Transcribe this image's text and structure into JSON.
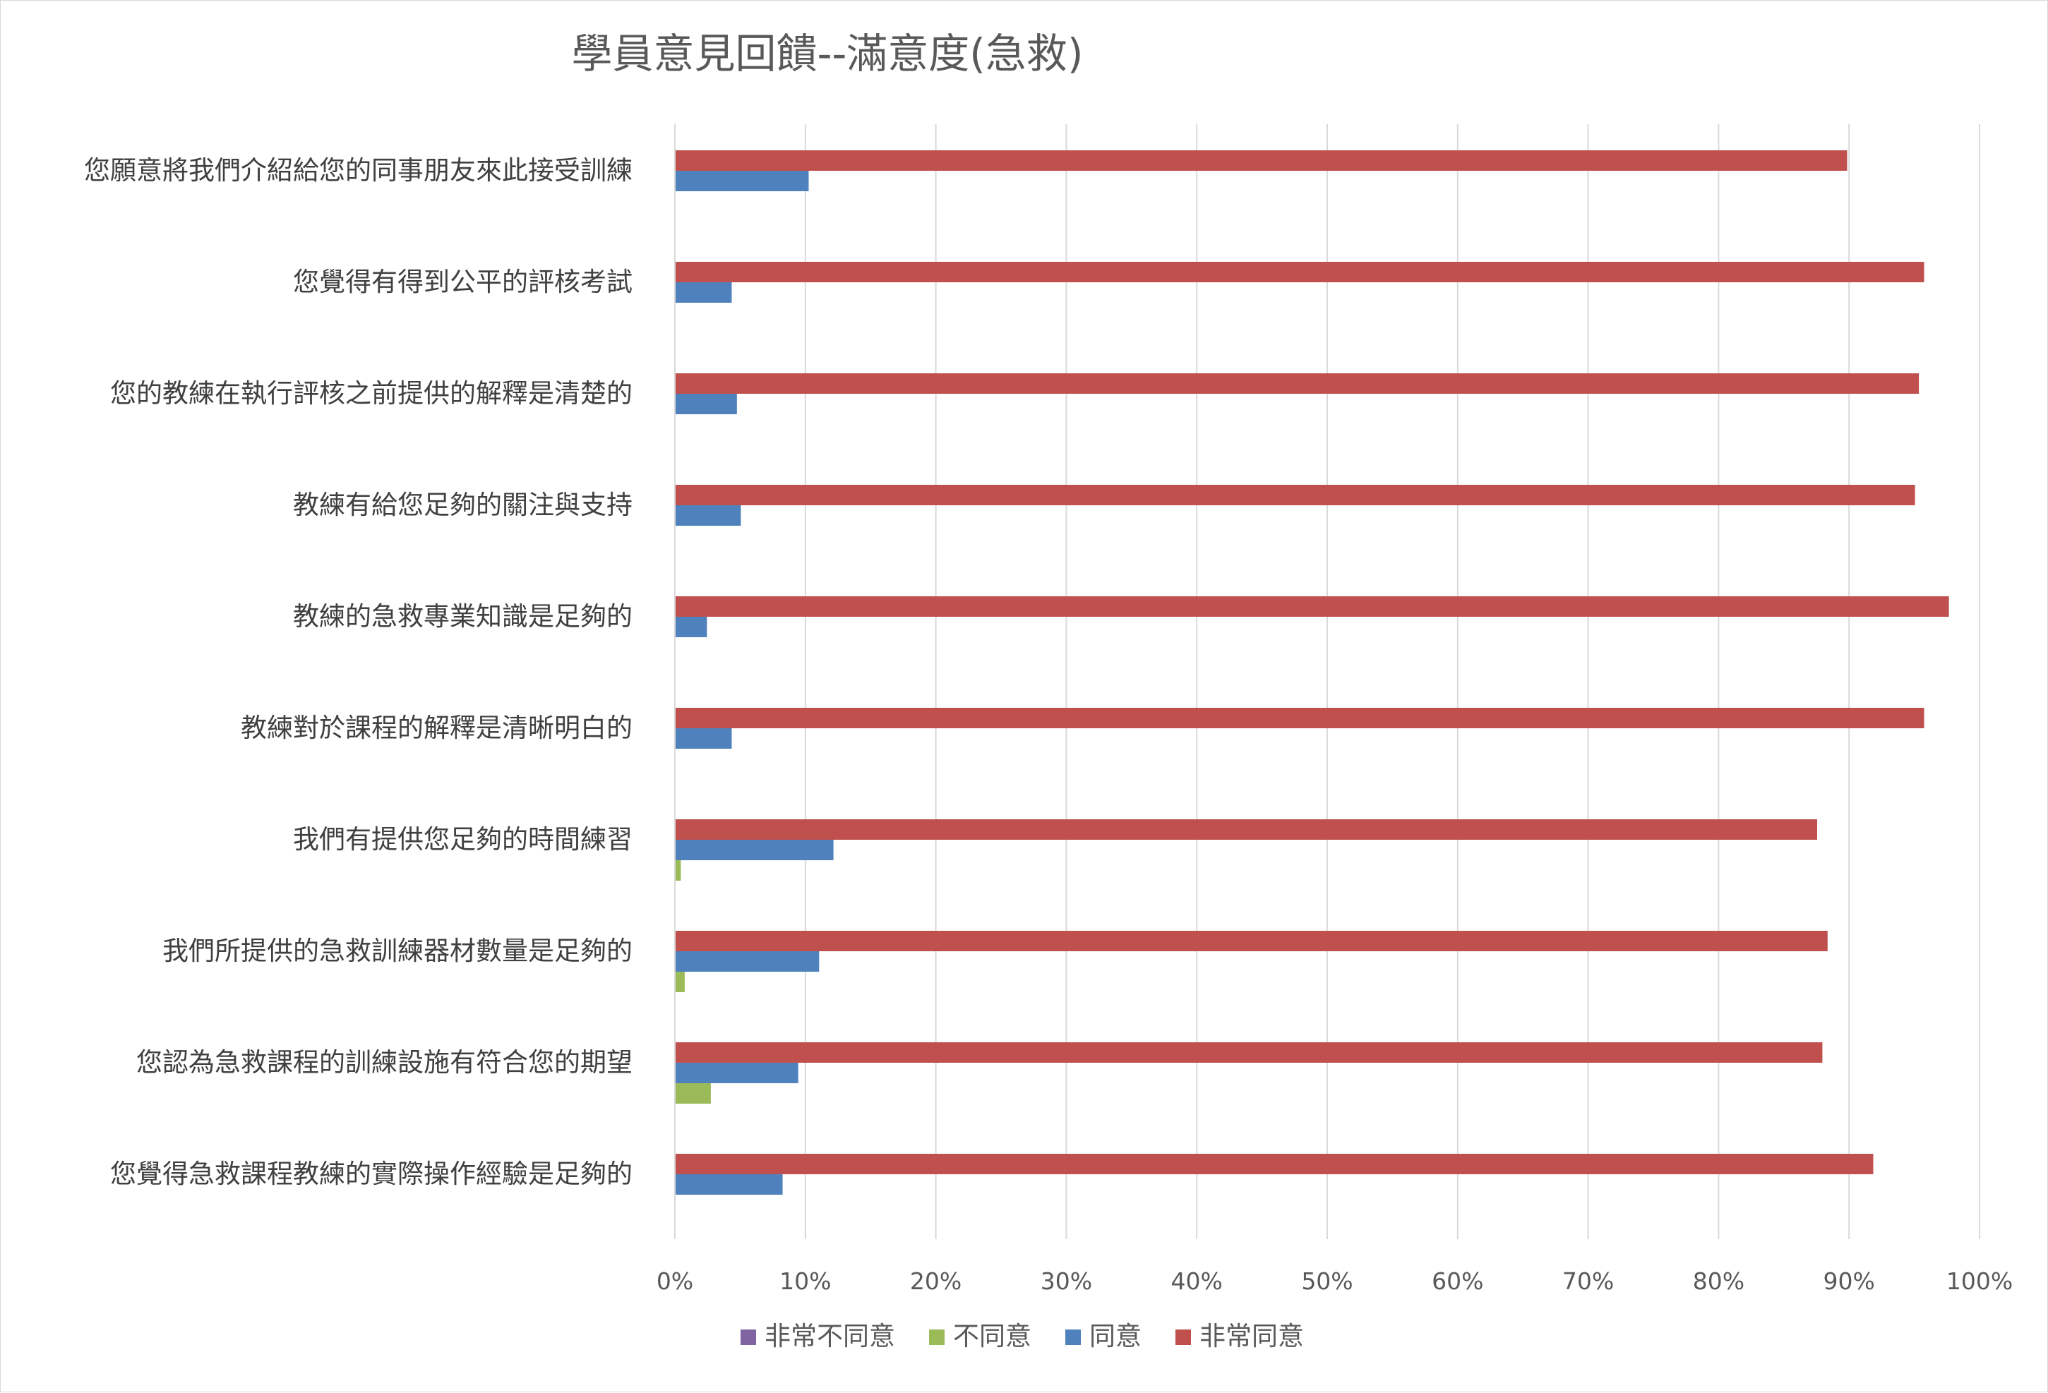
{
  "chart_data": {
    "type": "bar",
    "orientation": "horizontal",
    "title": "學員意見回饋--滿意度(急救)",
    "xlabel": "",
    "ylabel": "",
    "xlim": [
      0,
      1
    ],
    "x_tick_labels": [
      "0%",
      "10%",
      "20%",
      "30%",
      "40%",
      "50%",
      "60%",
      "70%",
      "80%",
      "90%",
      "100%"
    ],
    "grid": "vertical",
    "legend_position": "bottom",
    "categories": [
      "您覺得急救課程教練的實際操作經驗是足夠的",
      "您認為急救課程的訓練設施有符合您的期望",
      "我們所提供的急救訓練器材數量是足夠的",
      "我們有提供您足夠的時間練習",
      "教練對於課程的解釋是清晰明白的",
      "教練的急救專業知識是足夠的",
      "教練有給您足夠的關注與支持",
      "您的教練在執行評核之前提供的解釋是清楚的",
      "您覺得有得到公平的評核考試",
      "您願意將我們介紹給您的同事朋友來此接受訓練"
    ],
    "series": [
      {
        "name": "非常不同意",
        "color": "#8064a2",
        "values": [
          0,
          0,
          0,
          0,
          0,
          0,
          0,
          0,
          0,
          0
        ]
      },
      {
        "name": "不同意",
        "color": "#9bbb59",
        "values": [
          0,
          0.027,
          0.007,
          0.004,
          0,
          0,
          0,
          0,
          0,
          0
        ]
      },
      {
        "name": "同意",
        "color": "#4f81bd",
        "values": [
          0.082,
          0.094,
          0.11,
          0.121,
          0.043,
          0.024,
          0.05,
          0.047,
          0.043,
          0.102
        ]
      },
      {
        "name": "非常同意",
        "color": "#c0504d",
        "values": [
          0.918,
          0.879,
          0.883,
          0.875,
          0.957,
          0.976,
          0.95,
          0.953,
          0.957,
          0.898
        ]
      }
    ]
  }
}
